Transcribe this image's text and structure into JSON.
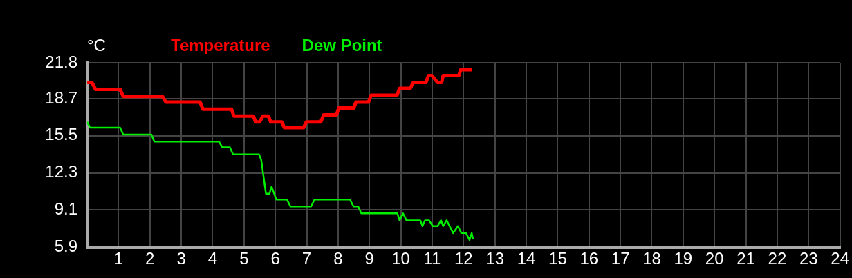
{
  "chart_data": {
    "type": "line",
    "ylabel": "°C",
    "xlim": [
      0,
      24
    ],
    "xticks": [
      1,
      2,
      3,
      4,
      5,
      6,
      7,
      8,
      9,
      10,
      11,
      12,
      13,
      14,
      15,
      16,
      17,
      18,
      19,
      20,
      21,
      22,
      23,
      24
    ],
    "ylim": [
      5.9,
      21.8
    ],
    "yticks": [
      5.9,
      9.1,
      12.3,
      15.5,
      18.7,
      21.8
    ],
    "grid": true,
    "legend": "top left",
    "marker": "none",
    "line_style": "solid",
    "series": [
      {
        "name": "Temperature",
        "color": "#ff0000",
        "x": [
          0,
          0.15,
          0.27,
          1.05,
          1.15,
          2.4,
          2.51,
          3.6,
          3.69,
          4.6,
          4.68,
          5.3,
          5.37,
          5.5,
          5.6,
          5.78,
          5.85,
          6.2,
          6.29,
          6.9,
          6.99,
          7.45,
          7.54,
          7.95,
          8.02,
          8.5,
          8.57,
          8.97,
          9.05,
          9.88,
          9.96,
          10.3,
          10.4,
          10.8,
          10.88,
          10.99,
          11.17,
          11.3,
          11.35,
          11.85,
          11.91,
          12.28
        ],
        "values": [
          20.1,
          20.1,
          19.5,
          19.5,
          18.9,
          18.9,
          18.4,
          18.4,
          17.8,
          17.8,
          17.2,
          17.2,
          16.7,
          16.7,
          17.2,
          17.2,
          16.7,
          16.7,
          16.2,
          16.2,
          16.7,
          16.7,
          17.3,
          17.3,
          17.9,
          17.9,
          18.4,
          18.4,
          19.0,
          19.0,
          19.6,
          19.6,
          20.1,
          20.1,
          20.7,
          20.7,
          20.1,
          20.1,
          20.7,
          20.7,
          21.2,
          21.2
        ]
      },
      {
        "name": "Dew Point",
        "color": "#00ee00",
        "x": [
          0,
          0.09,
          1.05,
          1.15,
          2.05,
          2.14,
          4.2,
          4.31,
          4.55,
          4.65,
          5.48,
          5.55,
          5.7,
          5.81,
          5.88,
          6.03,
          6.37,
          6.48,
          7.14,
          7.25,
          8.38,
          8.49,
          8.64,
          8.74,
          9.89,
          9.96,
          10.07,
          10.18,
          10.62,
          10.69,
          10.77,
          10.9,
          11.02,
          11.17,
          11.28,
          11.35,
          11.46,
          11.67,
          11.82,
          11.93,
          12.08,
          12.19,
          12.26,
          12.3
        ],
        "values": [
          16.7,
          16.2,
          16.2,
          15.6,
          15.6,
          15.0,
          15.0,
          14.5,
          14.5,
          13.9,
          13.9,
          13.4,
          10.5,
          10.5,
          11.1,
          10.0,
          10.0,
          9.4,
          9.4,
          10.0,
          10.0,
          9.4,
          9.4,
          8.8,
          8.8,
          8.2,
          8.8,
          8.2,
          8.2,
          7.7,
          8.2,
          8.2,
          7.7,
          7.7,
          8.2,
          7.7,
          8.2,
          7.1,
          7.7,
          7.1,
          7.1,
          6.5,
          7.1,
          6.6
        ]
      }
    ]
  }
}
